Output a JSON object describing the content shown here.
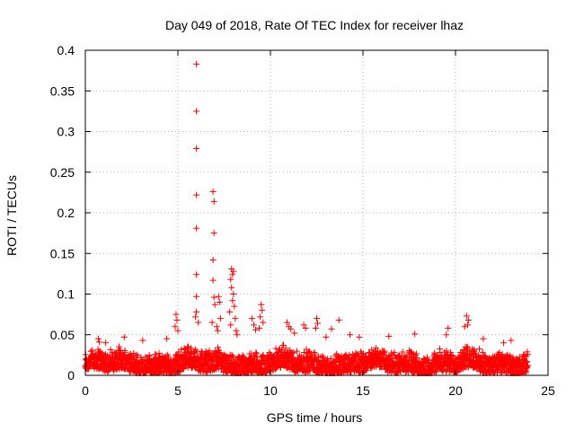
{
  "chart_data": {
    "type": "scatter",
    "title": "Day 049 of 2018, Rate Of TEC Index for receiver lhaz",
    "xlabel": "GPS time / hours",
    "ylabel": "ROTI / TECUs",
    "xlim": [
      0,
      25
    ],
    "ylim": [
      0,
      0.4
    ],
    "xticks": [
      0,
      5,
      10,
      15,
      20,
      25
    ],
    "yticks": [
      0,
      0.05,
      0.1,
      0.15,
      0.2,
      0.25,
      0.3,
      0.35,
      0.4
    ],
    "xtick_labels": [
      "0",
      "5",
      "10",
      "15",
      "20",
      "25"
    ],
    "ytick_labels": [
      "0",
      "0.05",
      "0.1",
      "0.15",
      "0.2",
      "0.25",
      "0.3",
      "0.35",
      "0.4"
    ],
    "grid": true,
    "marker": "+",
    "color": "#ff0000",
    "series": [
      {
        "name": "ROTI",
        "points": [
          [
            6.0,
            0.383
          ],
          [
            6.0,
            0.325
          ],
          [
            6.0,
            0.279
          ],
          [
            6.0,
            0.222
          ],
          [
            6.0,
            0.181
          ],
          [
            6.0,
            0.124
          ],
          [
            6.0,
            0.097
          ],
          [
            6.0,
            0.078
          ],
          [
            5.95,
            0.072
          ],
          [
            6.1,
            0.065
          ],
          [
            6.9,
            0.226
          ],
          [
            6.95,
            0.214
          ],
          [
            6.95,
            0.175
          ],
          [
            6.9,
            0.142
          ],
          [
            6.9,
            0.117
          ],
          [
            6.95,
            0.096
          ],
          [
            7.0,
            0.087
          ],
          [
            6.85,
            0.065
          ],
          [
            7.1,
            0.06
          ],
          [
            7.2,
            0.097
          ],
          [
            7.25,
            0.09
          ],
          [
            7.3,
            0.07
          ],
          [
            7.15,
            0.055
          ],
          [
            7.9,
            0.131
          ],
          [
            8.0,
            0.128
          ],
          [
            7.95,
            0.124
          ],
          [
            7.85,
            0.118
          ],
          [
            7.9,
            0.108
          ],
          [
            8.0,
            0.1
          ],
          [
            7.95,
            0.092
          ],
          [
            8.05,
            0.085
          ],
          [
            7.8,
            0.078
          ],
          [
            8.1,
            0.07
          ],
          [
            7.85,
            0.062
          ],
          [
            8.15,
            0.055
          ],
          [
            8.2,
            0.05
          ],
          [
            4.9,
            0.075
          ],
          [
            4.95,
            0.068
          ],
          [
            4.85,
            0.06
          ],
          [
            5.0,
            0.055
          ],
          [
            9.5,
            0.087
          ],
          [
            9.55,
            0.08
          ],
          [
            9.45,
            0.072
          ],
          [
            9.6,
            0.065
          ],
          [
            9.4,
            0.058
          ],
          [
            9.0,
            0.07
          ],
          [
            9.1,
            0.062
          ],
          [
            9.2,
            0.056
          ],
          [
            10.9,
            0.065
          ],
          [
            11.0,
            0.06
          ],
          [
            11.1,
            0.057
          ],
          [
            11.3,
            0.052
          ],
          [
            11.8,
            0.062
          ],
          [
            11.9,
            0.058
          ],
          [
            12.5,
            0.07
          ],
          [
            12.55,
            0.064
          ],
          [
            12.45,
            0.058
          ],
          [
            13.3,
            0.057
          ],
          [
            13.7,
            0.068
          ],
          [
            14.3,
            0.05
          ],
          [
            17.8,
            0.051
          ],
          [
            20.6,
            0.073
          ],
          [
            20.7,
            0.068
          ],
          [
            20.65,
            0.062
          ],
          [
            20.5,
            0.06
          ],
          [
            19.6,
            0.058
          ],
          [
            19.5,
            0.05
          ],
          [
            23.0,
            0.043
          ],
          [
            22.6,
            0.04
          ],
          [
            0.7,
            0.045
          ],
          [
            0.75,
            0.041
          ],
          [
            1.1,
            0.04
          ],
          [
            2.1,
            0.047
          ],
          [
            3.1,
            0.043
          ],
          [
            4.4,
            0.045
          ],
          [
            13.0,
            0.047
          ],
          [
            14.8,
            0.047
          ],
          [
            16.4,
            0.048
          ],
          [
            21.5,
            0.045
          ],
          [
            0.0,
            0.012
          ],
          [
            0.1,
            0.008
          ],
          [
            0.2,
            0.018
          ],
          [
            0.5,
            0.015
          ],
          [
            1.0,
            0.012
          ],
          [
            1.5,
            0.016
          ],
          [
            2.0,
            0.02
          ],
          [
            2.5,
            0.017
          ],
          [
            3.0,
            0.022
          ],
          [
            3.5,
            0.015
          ],
          [
            4.0,
            0.018
          ],
          [
            4.5,
            0.02
          ],
          [
            5.0,
            0.024
          ],
          [
            5.5,
            0.019
          ],
          [
            6.5,
            0.022
          ],
          [
            7.5,
            0.025
          ],
          [
            8.5,
            0.023
          ],
          [
            9.0,
            0.021
          ],
          [
            10.0,
            0.02
          ],
          [
            10.5,
            0.018
          ],
          [
            11.5,
            0.022
          ],
          [
            12.0,
            0.019
          ],
          [
            13.5,
            0.024
          ],
          [
            14.0,
            0.021
          ],
          [
            15.0,
            0.02
          ],
          [
            15.5,
            0.017
          ],
          [
            16.0,
            0.019
          ],
          [
            16.5,
            0.016
          ],
          [
            17.0,
            0.014
          ],
          [
            17.5,
            0.012
          ],
          [
            18.0,
            0.013
          ],
          [
            18.5,
            0.016
          ],
          [
            19.0,
            0.019
          ],
          [
            20.0,
            0.021
          ],
          [
            21.0,
            0.018
          ],
          [
            22.0,
            0.02
          ],
          [
            22.5,
            0.017
          ],
          [
            23.0,
            0.016
          ],
          [
            23.5,
            0.015
          ],
          [
            23.9,
            0.012
          ]
        ],
        "background_band": {
          "x_range": [
            0,
            23.9
          ],
          "y_range": [
            0.003,
            0.032
          ],
          "description_values": "dense cloud of ROTI samples"
        }
      }
    ]
  }
}
